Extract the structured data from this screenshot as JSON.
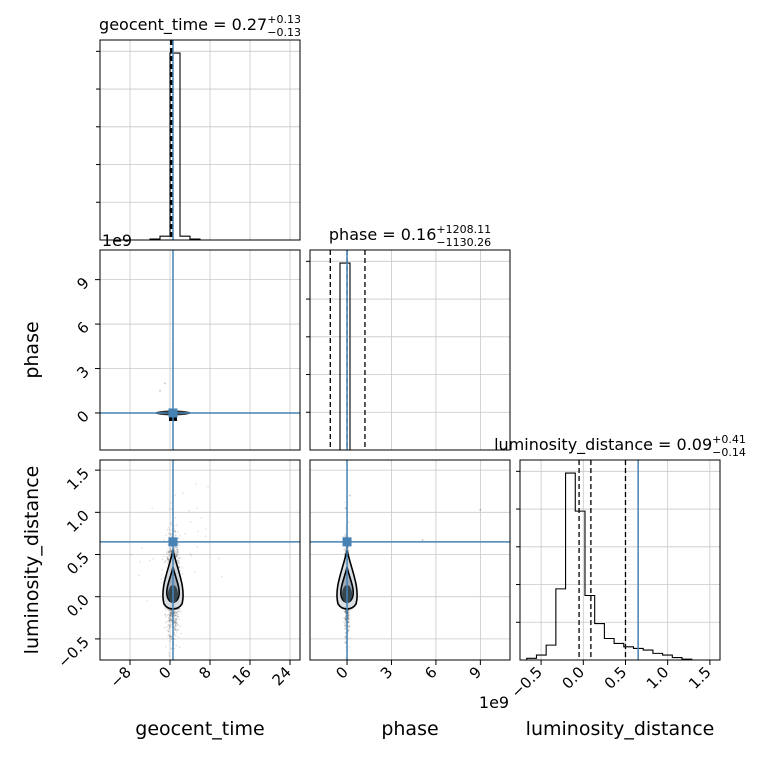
{
  "chart_data": {
    "type": "corner",
    "parameters": [
      "geocent_time",
      "phase",
      "luminosity_distance"
    ],
    "offset_labels": {
      "geocent_time_y_in_phase_row": "1e9",
      "phase_x": "1e9"
    },
    "truth_color": "#4682b4",
    "titles": [
      {
        "param": "geocent_time",
        "median": "0.27",
        "plus": "+0.13",
        "minus": "−0.13"
      },
      {
        "param": "phase",
        "median": "0.16",
        "plus": "+1208.11",
        "minus": "−1130.26"
      },
      {
        "param": "luminosity_distance",
        "median": "0.09",
        "plus": "+0.41",
        "minus": "−0.14"
      }
    ],
    "title_prefix": {
      "geocent_time": "geocent_time = ",
      "phase": "phase = ",
      "luminosity_distance": "luminosity_distance = "
    },
    "axes": {
      "geocent_time": {
        "range": [
          -14,
          26
        ],
        "ticks": [
          -8,
          0,
          8,
          16,
          24
        ],
        "tick_labels": [
          "−8",
          "0",
          "8",
          "16",
          "24"
        ],
        "truth": 0.6
      },
      "phase": {
        "range": [
          -2.5,
          11.0
        ],
        "ticks": [
          0,
          3,
          6,
          9
        ],
        "tick_labels": [
          "0",
          "3",
          "6",
          "9"
        ],
        "truth": 0.0
      },
      "luminosity_distance": {
        "range": [
          -0.75,
          1.62
        ],
        "ticks": [
          -0.5,
          0.0,
          0.5,
          1.0,
          1.5
        ],
        "tick_labels": [
          "−0.5",
          "0.0",
          "0.5",
          "1.0",
          "1.5"
        ],
        "truth": 0.65
      }
    },
    "axis_labels": {
      "geocent_time": "geocent_time",
      "phase": "phase",
      "luminosity_distance": "luminosity_distance"
    },
    "histograms": {
      "geocent_time": {
        "edges": [
          -14,
          -12,
          -10,
          -8,
          -6,
          -4,
          -2,
          0,
          2,
          4,
          6,
          8,
          10,
          12,
          14,
          16,
          18,
          20,
          22,
          24,
          26
        ],
        "counts": [
          0,
          0,
          0,
          0,
          0,
          1,
          4,
          195,
          4,
          1,
          0,
          0,
          0,
          0,
          0,
          0,
          0,
          0,
          0,
          0
        ],
        "quantiles": [
          0.14,
          0.27,
          0.4
        ]
      },
      "phase": {
        "edges": [
          -2.5,
          -1.825,
          -1.15,
          -0.475,
          0.2,
          0.875,
          1.55,
          2.225,
          2.9,
          3.575,
          4.25,
          4.925,
          5.6,
          6.275,
          6.95,
          7.625,
          8.3,
          8.975,
          9.65,
          10.325,
          11.0
        ],
        "counts": [
          0,
          0,
          0,
          200,
          0,
          0,
          0,
          0,
          0,
          0,
          0,
          0,
          0,
          0,
          0,
          0,
          0,
          0,
          0,
          0
        ],
        "quantiles": [
          -1.13,
          0.0,
          1.21
        ]
      },
      "luminosity_distance": {
        "edges": [
          -0.67,
          -0.555,
          -0.44,
          -0.325,
          -0.21,
          -0.095,
          0.02,
          0.135,
          0.25,
          0.365,
          0.48,
          0.595,
          0.71,
          0.825,
          0.94,
          1.055,
          1.17,
          1.285,
          1.4,
          1.515
        ],
        "counts": [
          2,
          6,
          18,
          86,
          226,
          180,
          78,
          44,
          26,
          20,
          16,
          14,
          12,
          8,
          6,
          3,
          1,
          0,
          0
        ],
        "quantiles": [
          -0.05,
          0.09,
          0.5
        ]
      }
    },
    "scatter_samples": {
      "geocent_time_vs_phase": {
        "x_sd": 0.35,
        "y_sd": 0.012
      },
      "geocent_time_vs_luminosity_distance": {
        "x_sd": 0.6,
        "y_center": 0.12,
        "y_sd": 0.28
      },
      "phase_vs_luminosity_distance": {
        "x_sd": 0.08,
        "y_center": 0.12,
        "y_sd": 0.28
      }
    },
    "grid": true
  }
}
